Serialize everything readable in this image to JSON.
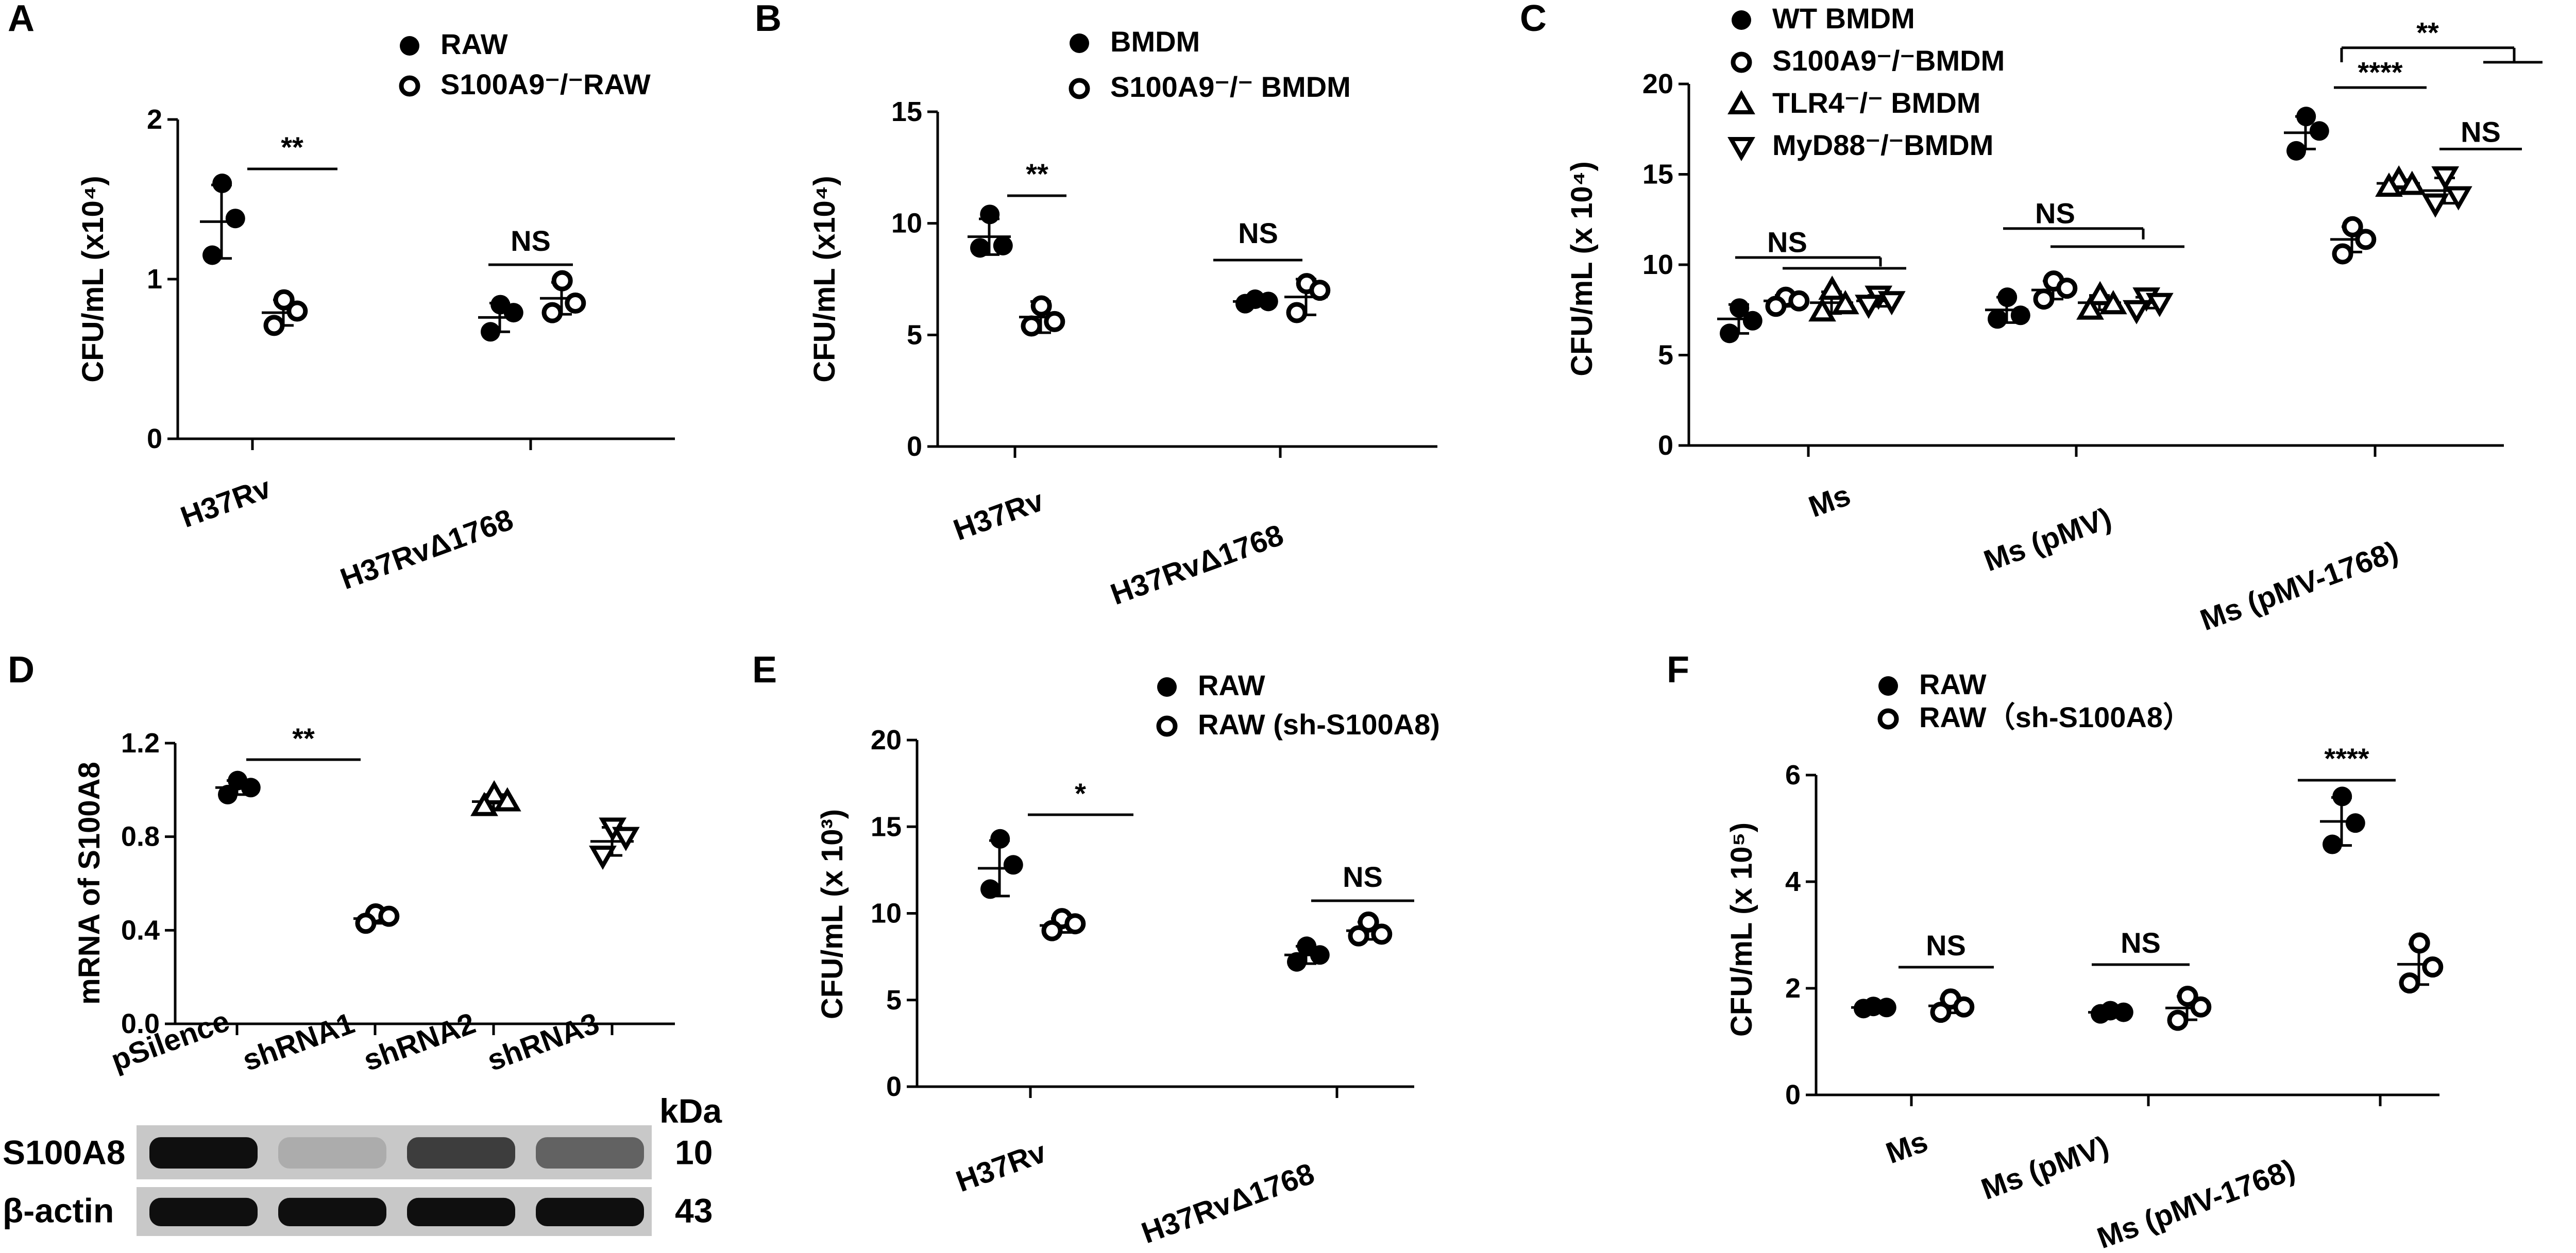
{
  "chart_data": [
    {
      "panel": "A",
      "type": "scatter",
      "ylabel": "CFU/mL (x10⁴)",
      "ylim": [
        0,
        2
      ],
      "yticks": [
        0,
        1,
        2
      ],
      "categories": [
        "H37Rv",
        "H37RvΔ1768"
      ],
      "legend": [
        "RAW",
        "S100A9⁻/⁻RAW"
      ],
      "groups": [
        {
          "category": "H37Rv",
          "series": "RAW",
          "points": [
            1.6,
            1.38,
            1.15
          ],
          "mean": 1.36,
          "sd": 0.23
        },
        {
          "category": "H37Rv",
          "series": "S100A9⁻/⁻RAW",
          "points": [
            0.87,
            0.8,
            0.71
          ],
          "mean": 0.79,
          "sd": 0.08
        },
        {
          "category": "H37RvΔ1768",
          "series": "RAW",
          "points": [
            0.84,
            0.79,
            0.67
          ],
          "mean": 0.76,
          "sd": 0.09
        },
        {
          "category": "H37RvΔ1768",
          "series": "S100A9⁻/⁻RAW",
          "points": [
            0.99,
            0.85,
            0.79
          ],
          "mean": 0.88,
          "sd": 0.1
        }
      ],
      "significance": [
        "**",
        "NS"
      ]
    },
    {
      "panel": "B",
      "type": "scatter",
      "ylabel": "CFU/mL (x10⁴)",
      "ylim": [
        0,
        15
      ],
      "yticks": [
        0,
        5,
        10,
        15
      ],
      "categories": [
        "H37Rv",
        "H37RvΔ1768"
      ],
      "legend": [
        "BMDM",
        "S100A9⁻/⁻ BMDM"
      ],
      "groups": [
        {
          "category": "H37Rv",
          "series": "BMDM",
          "points": [
            10.4,
            9.0,
            8.9
          ],
          "mean": 9.4,
          "sd": 0.8
        },
        {
          "category": "H37Rv",
          "series": "S100A9⁻/⁻ BMDM",
          "points": [
            6.3,
            5.6,
            5.4
          ],
          "mean": 5.8,
          "sd": 0.7
        },
        {
          "category": "H37RvΔ1768",
          "series": "BMDM",
          "points": [
            6.6,
            6.5,
            6.4
          ],
          "mean": 6.5,
          "sd": 0.1
        },
        {
          "category": "H37RvΔ1768",
          "series": "S100A9⁻/⁻ BMDM",
          "points": [
            7.3,
            7.0,
            6.0
          ],
          "mean": 6.7,
          "sd": 0.8
        }
      ],
      "significance": [
        "**",
        "NS"
      ]
    },
    {
      "panel": "C",
      "type": "scatter",
      "ylabel": "CFU/mL (x 10⁴)",
      "ylim": [
        0,
        20
      ],
      "yticks": [
        0,
        5,
        10,
        15,
        20
      ],
      "categories": [
        "Ms",
        "Ms (pMV)",
        "Ms (pMV-1768)"
      ],
      "legend": [
        "WT BMDM",
        "S100A9⁻/⁻BMDM",
        "TLR4⁻/⁻ BMDM",
        "MyD88⁻/⁻BMDM"
      ],
      "groups": [
        {
          "category": "Ms",
          "series": "WT BMDM",
          "points": [
            7.6,
            6.9,
            6.2
          ],
          "mean": 7.0,
          "sd": 0.8
        },
        {
          "category": "Ms",
          "series": "S100A9⁻/⁻BMDM",
          "points": [
            8.2,
            8.0,
            7.7
          ],
          "mean": 8.0,
          "sd": 0.3
        },
        {
          "category": "Ms",
          "series": "TLR4⁻/⁻ BMDM",
          "points": [
            8.6,
            7.8,
            7.4
          ],
          "mean": 7.9,
          "sd": 0.6
        },
        {
          "category": "Ms",
          "series": "MyD88⁻/⁻BMDM",
          "points": [
            8.3,
            8.0,
            7.8
          ],
          "mean": 8.0,
          "sd": 0.3
        },
        {
          "category": "Ms (pMV)",
          "series": "WT BMDM",
          "points": [
            8.2,
            7.2,
            7.0
          ],
          "mean": 7.5,
          "sd": 0.7
        },
        {
          "category": "Ms (pMV)",
          "series": "S100A9⁻/⁻BMDM",
          "points": [
            9.1,
            8.7,
            8.1
          ],
          "mean": 8.6,
          "sd": 0.5
        },
        {
          "category": "Ms (pMV)",
          "series": "TLR4⁻/⁻ BMDM",
          "points": [
            8.3,
            7.8,
            7.5
          ],
          "mean": 7.9,
          "sd": 0.4
        },
        {
          "category": "Ms (pMV)",
          "series": "MyD88⁻/⁻BMDM",
          "points": [
            8.2,
            7.9,
            7.5
          ],
          "mean": 7.9,
          "sd": 0.3
        },
        {
          "category": "Ms (pMV-1768)",
          "series": "WT BMDM",
          "points": [
            18.2,
            17.4,
            16.3
          ],
          "mean": 17.3,
          "sd": 0.9
        },
        {
          "category": "Ms (pMV-1768)",
          "series": "S100A9⁻/⁻BMDM",
          "points": [
            12.1,
            11.4,
            10.6
          ],
          "mean": 11.4,
          "sd": 0.7
        },
        {
          "category": "Ms (pMV-1768)",
          "series": "TLR4⁻/⁻ BMDM",
          "points": [
            14.7,
            14.4,
            14.3
          ],
          "mean": 14.5,
          "sd": 0.2
        },
        {
          "category": "Ms (pMV-1768)",
          "series": "MyD88⁻/⁻BMDM",
          "points": [
            14.9,
            13.8,
            13.4
          ],
          "mean": 14.1,
          "sd": 0.7
        }
      ],
      "significance": [
        "NS",
        "NS",
        "****",
        "NS",
        "**"
      ]
    },
    {
      "panel": "D",
      "type": "scatter",
      "ylabel": "mRNA of S100A8",
      "ylim": [
        0,
        1.2
      ],
      "yticks": [
        "0.0",
        "0.4",
        "0.8",
        "1.2"
      ],
      "categories": [
        "pSilence",
        "shRNA1",
        "shRNA2",
        "shRNA3"
      ],
      "groups": [
        {
          "category": "pSilence",
          "points": [
            1.04,
            1.01,
            0.98
          ],
          "mean": 1.01,
          "sd": 0.03
        },
        {
          "category": "shRNA1",
          "points": [
            0.47,
            0.46,
            0.43
          ],
          "mean": 0.45,
          "sd": 0.02
        },
        {
          "category": "shRNA2",
          "points": [
            0.98,
            0.95,
            0.93
          ],
          "mean": 0.95,
          "sd": 0.03
        },
        {
          "category": "shRNA3",
          "points": [
            0.84,
            0.8,
            0.72
          ],
          "mean": 0.78,
          "sd": 0.06
        }
      ],
      "significance": [
        "**"
      ],
      "blot": {
        "unit": "kDa",
        "rows": [
          {
            "label": "S100A8",
            "kda": "10",
            "intensity": [
              1.0,
              0.15,
              0.75,
              0.55
            ]
          },
          {
            "label": "β-actin",
            "kda": "43",
            "intensity": [
              1.0,
              1.0,
              1.0,
              1.0
            ]
          }
        ]
      }
    },
    {
      "panel": "E",
      "type": "scatter",
      "ylabel": "CFU/mL (x 10³)",
      "ylim": [
        0,
        20
      ],
      "yticks": [
        0,
        5,
        10,
        15,
        20
      ],
      "categories": [
        "H37Rv",
        "H37RvΔ1768"
      ],
      "legend": [
        "RAW",
        "RAW (sh-S100A8)"
      ],
      "groups": [
        {
          "category": "H37Rv",
          "series": "RAW",
          "points": [
            14.3,
            12.8,
            11.4
          ],
          "mean": 12.6,
          "sd": 1.6
        },
        {
          "category": "H37Rv",
          "series": "RAW (sh-S100A8)",
          "points": [
            9.7,
            9.4,
            9.0
          ],
          "mean": 9.3,
          "sd": 0.4
        },
        {
          "category": "H37RvΔ1768",
          "series": "RAW",
          "points": [
            8.1,
            7.6,
            7.2
          ],
          "mean": 7.6,
          "sd": 0.5
        },
        {
          "category": "H37RvΔ1768",
          "series": "RAW (sh-S100A8)",
          "points": [
            9.5,
            8.8,
            8.7
          ],
          "mean": 9.0,
          "sd": 0.5
        }
      ],
      "significance": [
        "*",
        "NS"
      ]
    },
    {
      "panel": "F",
      "type": "scatter",
      "ylabel": "CFU/mL (x 10⁵)",
      "ylim": [
        0,
        6
      ],
      "yticks": [
        0,
        2,
        4,
        6
      ],
      "categories": [
        "Ms",
        "Ms (pMV)",
        "Ms (pMV-1768)"
      ],
      "legend": [
        "RAW",
        "RAW（sh-S100A8）"
      ],
      "groups": [
        {
          "category": "Ms",
          "series": "RAW",
          "points": [
            1.66,
            1.64,
            1.62
          ],
          "mean": 1.64,
          "sd": 0.02
        },
        {
          "category": "Ms",
          "series": "RAW（sh-S100A8）",
          "points": [
            1.8,
            1.65,
            1.55
          ],
          "mean": 1.67,
          "sd": 0.13
        },
        {
          "category": "Ms (pMV)",
          "series": "RAW",
          "points": [
            1.58,
            1.55,
            1.52
          ],
          "mean": 1.55,
          "sd": 0.03
        },
        {
          "category": "Ms (pMV)",
          "series": "RAW（sh-S100A8）",
          "points": [
            1.85,
            1.65,
            1.4
          ],
          "mean": 1.63,
          "sd": 0.22
        },
        {
          "category": "Ms (pMV-1768)",
          "series": "RAW",
          "points": [
            5.6,
            5.1,
            4.7
          ],
          "mean": 5.13,
          "sd": 0.45
        },
        {
          "category": "Ms (pMV-1768)",
          "series": "RAW（sh-S100A8）",
          "points": [
            2.85,
            2.4,
            2.1
          ],
          "mean": 2.45,
          "sd": 0.38
        }
      ],
      "significance": [
        "NS",
        "NS",
        "****"
      ]
    }
  ]
}
